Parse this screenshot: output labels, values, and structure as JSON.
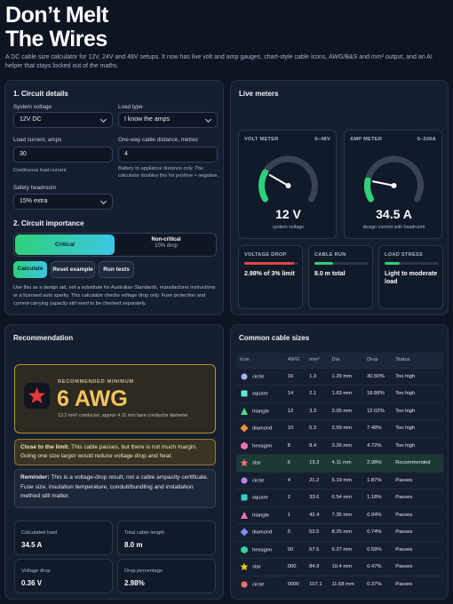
{
  "header": {
    "title_line1": "Don’t Melt",
    "title_line2": "The Wires",
    "subtitle": "A DC cable size calculator for 12V, 24V and 48V setups. It now has live volt and amp gauges, chart-style cable icons, AWG/B&S and mm² output, and an AI helper that stays locked out of the maths."
  },
  "circuit": {
    "heading": "1. Circuit details",
    "fields": [
      {
        "label": "System voltage",
        "value": "12V DC"
      },
      {
        "label": "Load type",
        "value": "I know the amps"
      },
      {
        "label": "Load current, amps",
        "value": "30",
        "help": "Continuous load current"
      },
      {
        "label": "One-way cable distance, metres",
        "value": "4",
        "help": "Battery to appliance distance only. The calculator doubles this for positive + negative."
      },
      {
        "label": "Safety headroom",
        "value": "15% extra"
      }
    ],
    "importance_heading": "2. Circuit importance",
    "options": [
      {
        "label": "Critical"
      },
      {
        "label": "Non-critical",
        "sub": "10% drop"
      }
    ],
    "buttons": [
      "Calculate",
      "Reset example",
      "Run tests"
    ],
    "note": "Use this as a design aid, not a substitute for Australian Standards, manufacturer instructions or a licensed auto sparky. This calculator checks voltage drop only. Fuse protection and current-carrying capacity still need to be checked separately."
  },
  "meters": {
    "heading": "Live meters",
    "gauges": [
      {
        "title": "VOLT METER",
        "range_label": "0–48V",
        "min": 0,
        "max": 48,
        "value": 12,
        "label": "12 V",
        "caption": "system voltage"
      },
      {
        "title": "AMP METER",
        "range_label": "0–200A",
        "min": 0,
        "max": 200,
        "value": 34.5,
        "label": "34.5 A",
        "caption": "design current with headroom"
      }
    ],
    "cards": [
      {
        "title": "VOLTAGE DROP",
        "value": "2.98% of 3% limit"
      },
      {
        "title": "CABLE RUN",
        "value": "8.0 m total"
      },
      {
        "title": "LOAD STRESS",
        "value": "Light to moderate load"
      }
    ]
  },
  "recommendation": {
    "heading": "Recommendation",
    "kicker": "RECOMMENDED MINIMUM",
    "size": "6 AWG",
    "detail": "13.3 mm² conductor, approx 4.11 mm bare conductor diameter.",
    "warning_lead": "Close to the limit:",
    "warning_text": " This cable passes, but there is not much margin. Going one size larger would reduce voltage drop and heat.",
    "reminder_lead": "Reminder:",
    "reminder_text": " This is a voltage-drop result, not a cable ampacity certificate. Fuse size, insulation temperature, conduit/bundling and installation method still matter.",
    "stats": [
      {
        "label": "Calculated load",
        "value": "34.5 A"
      },
      {
        "label": "Total cable length",
        "value": "8.0 m"
      },
      {
        "label": "Voltage drop",
        "value": "0.36 V"
      },
      {
        "label": "Drop percentage",
        "value": "2.98%"
      }
    ]
  },
  "cable_table": {
    "heading": "Common cable sizes",
    "columns": [
      "Icon",
      "AWG",
      "mm²",
      "Dia.",
      "Drop",
      "Status"
    ],
    "rows": [
      [
        "circle",
        "16",
        "1.3",
        "1.29 mm",
        "30.50%",
        "Too high"
      ],
      [
        "square",
        "14",
        "2.1",
        "1.63 mm",
        "18.88%",
        "Too high"
      ],
      [
        "triangle",
        "12",
        "3.3",
        "2.05 mm",
        "12.02%",
        "Too high"
      ],
      [
        "diamond",
        "10",
        "5.3",
        "2.59 mm",
        "7.48%",
        "Too high"
      ],
      [
        "hexagon",
        "8",
        "8.4",
        "3.26 mm",
        "4.72%",
        "Too high"
      ],
      [
        "star",
        "6",
        "13.3",
        "4.11 mm",
        "2.98%",
        "Recommended"
      ],
      [
        "circle",
        "4",
        "21.2",
        "5.19 mm",
        "1.87%",
        "Passes"
      ],
      [
        "square",
        "2",
        "33.6",
        "6.54 mm",
        "1.18%",
        "Passes"
      ],
      [
        "triangle",
        "1",
        "42.4",
        "7.35 mm",
        "0.94%",
        "Passes"
      ],
      [
        "diamond",
        "0",
        "53.5",
        "8.25 mm",
        "0.74%",
        "Passes"
      ],
      [
        "hexagon",
        "00",
        "67.5",
        "9.27 mm",
        "0.59%",
        "Passes"
      ],
      [
        "star",
        "000",
        "84.9",
        "10.4 mm",
        "0.47%",
        "Passes"
      ],
      [
        "circle",
        "0000",
        "107.1",
        "11.68 mm",
        "0.37%",
        "Passes"
      ]
    ]
  }
}
